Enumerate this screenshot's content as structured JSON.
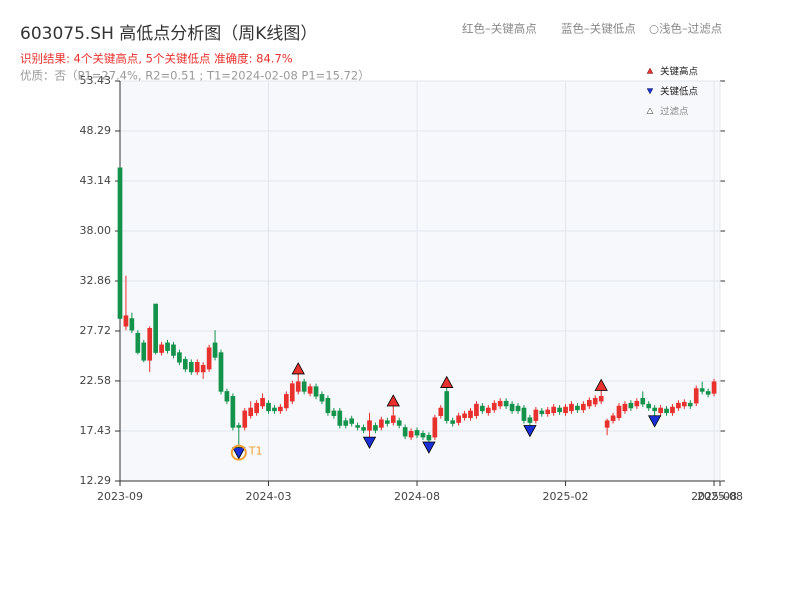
{
  "chart_data": {
    "type": "candlestick",
    "title": "603075.SH 高低点分析图（周K线图）",
    "subtitle": "识别结果: 4个关键高点, 5个关键低点  准确度: 84.7%",
    "note": "优质：否（P1=27.4%, R2=0.51 ; T1=2024-02-08 P1=15.72）",
    "header_legend": [
      "红色–关键高点",
      "蓝色–关键低点",
      "○浅色–过滤点"
    ],
    "up_color": "#e8302c",
    "down_color": "#13924a",
    "xlim": [
      0,
      101
    ],
    "xticks": [
      {
        "value": 0,
        "label": "2023-09"
      },
      {
        "value": 25,
        "label": "2024-03"
      },
      {
        "value": 50,
        "label": "2024-08"
      },
      {
        "value": 75,
        "label": "2025-02"
      },
      {
        "value": 100,
        "label": "2025-08"
      },
      {
        "value": 101,
        "label": "2025-08"
      }
    ],
    "ylim": [
      12.29,
      53.43
    ],
    "yticks": [
      12.29,
      17.43,
      22.58,
      27.72,
      32.86,
      38.0,
      43.14,
      48.29,
      53.43
    ],
    "grid": true,
    "ohlc": [
      [
        44.5,
        44.5,
        29,
        29
      ],
      [
        28.2,
        33.4,
        27.8,
        29.3
      ],
      [
        29,
        29.6,
        27.5,
        27.8
      ],
      [
        27.5,
        27.8,
        25.3,
        25.5
      ],
      [
        26.5,
        26.8,
        24.5,
        24.7
      ],
      [
        24.7,
        28.2,
        23.5,
        28
      ],
      [
        30.5,
        30.5,
        25.3,
        25.5
      ],
      [
        25.5,
        26.6,
        25.2,
        26.3
      ],
      [
        26.5,
        26.8,
        25.4,
        25.7
      ],
      [
        26.3,
        26.6,
        24.9,
        25.2
      ],
      [
        25.5,
        25.8,
        24.2,
        24.5
      ],
      [
        24.8,
        25.1,
        23.5,
        23.8
      ],
      [
        24.5,
        24.8,
        23.2,
        23.5
      ],
      [
        23.5,
        24.8,
        23.2,
        24.5
      ],
      [
        23.5,
        24.5,
        22.8,
        24.2
      ],
      [
        23.8,
        26.3,
        23.5,
        26
      ],
      [
        26.5,
        27.8,
        24.7,
        25
      ],
      [
        25.5,
        25.8,
        21.2,
        21.5
      ],
      [
        21.5,
        21.8,
        20.2,
        20.5
      ],
      [
        21,
        21.3,
        17.5,
        17.8
      ],
      [
        18,
        18.3,
        15.72,
        17.8
      ],
      [
        17.8,
        19.8,
        17.5,
        19.5
      ],
      [
        19,
        20.5,
        18.7,
        19.8
      ],
      [
        19.3,
        20.6,
        19,
        20.3
      ],
      [
        20,
        21.3,
        19.7,
        20.8
      ],
      [
        20.3,
        20.6,
        19.2,
        19.5
      ],
      [
        19.8,
        20.1,
        19.2,
        19.5
      ],
      [
        19.5,
        20.2,
        19.2,
        19.9
      ],
      [
        19.8,
        21.5,
        19.5,
        21.2
      ],
      [
        20.5,
        22.6,
        20.2,
        22.3
      ],
      [
        21.5,
        23.3,
        21.2,
        22.5
      ],
      [
        22.5,
        22.8,
        21.2,
        21.5
      ],
      [
        21.3,
        22.3,
        21,
        22
      ],
      [
        22,
        22.3,
        20.7,
        21
      ],
      [
        21.2,
        21.5,
        20.2,
        20.5
      ],
      [
        20.8,
        21.1,
        19,
        19.3
      ],
      [
        19.5,
        19.8,
        18.7,
        19
      ],
      [
        19.5,
        19.8,
        17.7,
        18
      ],
      [
        18.5,
        18.8,
        17.7,
        18
      ],
      [
        18.7,
        19,
        17.9,
        18.2
      ],
      [
        18,
        18.3,
        17.5,
        17.8
      ],
      [
        17.8,
        18.1,
        17.2,
        17.5
      ],
      [
        17.5,
        19.3,
        16.8,
        18.5
      ],
      [
        18,
        18.3,
        17.2,
        17.5
      ],
      [
        17.8,
        18.9,
        17.5,
        18.6
      ],
      [
        18.5,
        18.8,
        17.9,
        18.2
      ],
      [
        18.3,
        20,
        18,
        19
      ],
      [
        18.5,
        18.8,
        17.7,
        18
      ],
      [
        17.8,
        18.1,
        16.6,
        16.9
      ],
      [
        16.8,
        17.7,
        16.5,
        17.4
      ],
      [
        17.5,
        17.8,
        16.7,
        17
      ],
      [
        17.2,
        17.5,
        16.5,
        16.8
      ],
      [
        17,
        17.3,
        16.3,
        16.5
      ],
      [
        16.8,
        19.1,
        16.5,
        18.8
      ],
      [
        19,
        20.1,
        18.7,
        19.8
      ],
      [
        21.5,
        21.9,
        18.2,
        18.5
      ],
      [
        18.5,
        18.8,
        17.9,
        18.2
      ],
      [
        18.3,
        19.3,
        18,
        19
      ],
      [
        18.8,
        19.5,
        18.5,
        19.2
      ],
      [
        18.8,
        19.8,
        18.5,
        19.5
      ],
      [
        19,
        20.5,
        18.7,
        20.2
      ],
      [
        20,
        20.3,
        19.2,
        19.5
      ],
      [
        19.3,
        20.1,
        19,
        19.8
      ],
      [
        19.6,
        20.6,
        19.3,
        20.3
      ],
      [
        20,
        20.8,
        19.7,
        20.5
      ],
      [
        20.5,
        20.8,
        19.7,
        20
      ],
      [
        20.2,
        20.5,
        19.2,
        19.5
      ],
      [
        20,
        20.3,
        19.2,
        19.5
      ],
      [
        19.8,
        20.1,
        18.2,
        18.5
      ],
      [
        18.8,
        19.1,
        18,
        18.3
      ],
      [
        18.5,
        19.9,
        18.2,
        19.6
      ],
      [
        19.5,
        19.8,
        18.9,
        19.2
      ],
      [
        19.2,
        19.9,
        18.9,
        19.6
      ],
      [
        19.3,
        20.2,
        19,
        19.9
      ],
      [
        19.8,
        20.1,
        19.1,
        19.4
      ],
      [
        19.3,
        20.2,
        19,
        19.9
      ],
      [
        19.5,
        20.5,
        19.2,
        20.2
      ],
      [
        20,
        20.3,
        19.3,
        19.6
      ],
      [
        19.6,
        20.5,
        19.3,
        20.2
      ],
      [
        20,
        20.9,
        19.7,
        20.6
      ],
      [
        20.2,
        21.1,
        19.9,
        20.8
      ],
      [
        20.5,
        21.6,
        20.2,
        21
      ],
      [
        17.8,
        18.7,
        17,
        18.5
      ],
      [
        18.5,
        19.3,
        18.2,
        19
      ],
      [
        18.8,
        20.3,
        18.5,
        20
      ],
      [
        19.5,
        20.5,
        19.2,
        20.2
      ],
      [
        20.3,
        20.6,
        19.5,
        19.8
      ],
      [
        20,
        20.8,
        19.7,
        20.5
      ],
      [
        20.8,
        21.5,
        19.9,
        20.2
      ],
      [
        20.2,
        20.5,
        19.5,
        19.8
      ],
      [
        19.8,
        20.1,
        19,
        19.5
      ],
      [
        19.3,
        20.1,
        19,
        19.8
      ],
      [
        19.7,
        20,
        19,
        19.3
      ],
      [
        19.3,
        20.2,
        19,
        19.9
      ],
      [
        19.8,
        20.6,
        19.5,
        20.3
      ],
      [
        20,
        20.7,
        19.7,
        20.4
      ],
      [
        20.3,
        20.6,
        19.7,
        20
      ],
      [
        20.3,
        22.1,
        20,
        21.8
      ],
      [
        21.8,
        22.5,
        21.2,
        21.5
      ],
      [
        21.5,
        21.8,
        20.9,
        21.2
      ],
      [
        21.3,
        22.8,
        21,
        22.5
      ]
    ],
    "key_highs": {
      "name": "关键高点",
      "color": "#e8302c",
      "x": [
        30,
        46,
        55,
        81
      ],
      "values": [
        23.3,
        20.0,
        21.9,
        21.6
      ]
    },
    "key_lows": {
      "name": "关键低点",
      "color": "#1a2fd6",
      "x": [
        20,
        42,
        52,
        69,
        90
      ],
      "values": [
        15.72,
        16.8,
        16.3,
        18.0,
        19.0
      ]
    },
    "filtered": {
      "name": "过滤点",
      "color": "#ffffff"
    },
    "annotations": [
      {
        "text": "T1",
        "x": 20,
        "y": 15.72,
        "color": "#f0a030"
      }
    ]
  }
}
